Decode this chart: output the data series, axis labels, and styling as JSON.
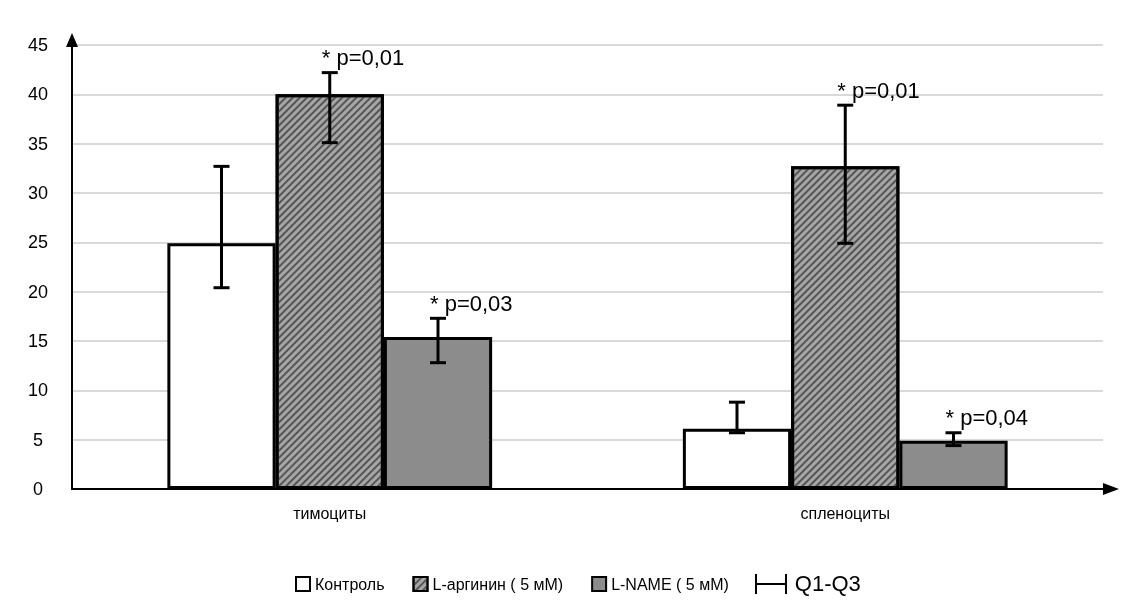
{
  "chart_data": {
    "type": "bar",
    "categories": [
      "тимоциты",
      "спленоциты"
    ],
    "series": [
      {
        "name": "Контроль",
        "color": "#ffffff",
        "values": [
          24.9,
          6.1
        ],
        "errors": [
          [
            20.4,
            32.7
          ],
          [
            5.7,
            8.8
          ]
        ]
      },
      {
        "name": "L-аргинин ( 5 мМ)",
        "color": "#a6a6a6",
        "values": [
          40,
          32.7
        ],
        "errors": [
          [
            35.1,
            42.2
          ],
          [
            24.9,
            38.9
          ]
        ]
      },
      {
        "name": "L-NAME ( 5 мМ)",
        "color": "#8c8c8c",
        "values": [
          15.4,
          4.9
        ],
        "errors": [
          [
            12.8,
            17.3
          ],
          [
            4.4,
            5.7
          ]
        ]
      }
    ],
    "ylim": [
      0,
      45
    ],
    "yticks": [
      0,
      5,
      10,
      15,
      20,
      25,
      30,
      35,
      40,
      45
    ],
    "grid": "y",
    "legend": "bottom",
    "annotations": [
      {
        "text": "* p=0,01",
        "x": "тимоциты",
        "y": 42.2
      },
      "* p=0,03",
      {
        "text": "* p=0,01",
        "x": "спленоциты",
        "y": 38.9
      },
      "* p=0,04",
      "Q1-Q3"
    ]
  }
}
